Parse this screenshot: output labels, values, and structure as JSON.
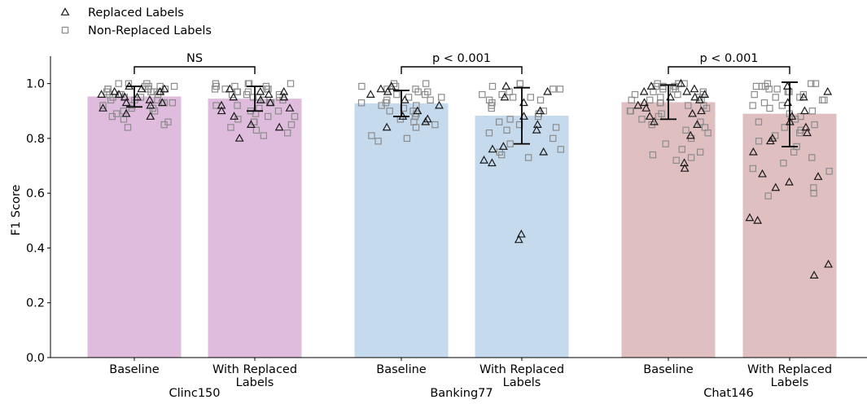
{
  "chart_data": {
    "type": "bar",
    "ylabel": "F1 Score",
    "xlabel": "",
    "title": "",
    "ylim": [
      0,
      1.1
    ],
    "yticks": [
      0.0,
      0.2,
      0.4,
      0.6,
      0.8,
      1.0
    ],
    "ytick_labels": [
      "0.0",
      "0.2",
      "0.4",
      "0.6",
      "0.8",
      "1.0"
    ],
    "legend": {
      "placement": "top-left",
      "entries": [
        {
          "label": "Replaced Labels",
          "marker": "triangle-icon"
        },
        {
          "label": "Non-Replaced Labels",
          "marker": "square-icon"
        }
      ]
    },
    "marker_colors": {
      "replaced": "#1a1a1a",
      "non_replaced": "#8c8c8c"
    },
    "groups": [
      {
        "name": "Clinc150",
        "color": "#dfbcdd",
        "significance": "NS",
        "bars": [
          {
            "label": "Baseline",
            "label_lines": [
              "Baseline"
            ],
            "value": 0.953,
            "error": [
              0.915,
              0.99
            ],
            "replaced": [
              0.99,
              0.98,
              0.97,
              0.96,
              0.95,
              0.93,
              0.92,
              0.91,
              0.98,
              0.96,
              0.94,
              0.89,
              0.88,
              0.97,
              0.95,
              0.93
            ],
            "non_replaced": [
              1.0,
              1.0,
              0.99,
              0.99,
              0.99,
              0.98,
              0.98,
              0.98,
              0.97,
              0.97,
              0.97,
              0.96,
              0.96,
              0.96,
              0.95,
              0.95,
              0.94,
              0.94,
              0.93,
              0.93,
              0.92,
              0.92,
              0.91,
              0.9,
              0.89,
              0.87,
              0.86,
              0.85,
              0.84,
              1.0,
              0.99,
              0.98,
              0.97,
              0.96,
              0.95,
              0.94,
              0.93,
              0.91,
              0.9,
              0.88
            ]
          },
          {
            "label": "With Replaced Labels",
            "label_lines": [
              "With Replaced",
              "Labels"
            ],
            "value": 0.945,
            "error": [
              0.9,
              0.99
            ],
            "replaced": [
              0.98,
              0.97,
              0.96,
              0.95,
              0.94,
              0.93,
              0.92,
              0.91,
              0.9,
              0.88,
              0.85,
              0.84,
              0.8,
              0.97,
              0.95
            ],
            "non_replaced": [
              1.0,
              1.0,
              1.0,
              0.99,
              0.99,
              0.98,
              0.98,
              0.98,
              0.97,
              0.97,
              0.97,
              0.96,
              0.96,
              0.95,
              0.95,
              0.94,
              0.94,
              0.93,
              0.92,
              0.91,
              0.9,
              0.89,
              0.88,
              0.87,
              0.86,
              0.85,
              0.84,
              0.83,
              0.82,
              0.81,
              1.0,
              0.99,
              0.98,
              0.96,
              0.95,
              0.93,
              0.92,
              0.9,
              0.88,
              0.86
            ]
          }
        ]
      },
      {
        "name": "Banking77",
        "color": "#c5daec",
        "significance": "p < 0.001",
        "bars": [
          {
            "label": "Baseline",
            "label_lines": [
              "Baseline"
            ],
            "value": 0.928,
            "error": [
              0.88,
              0.975
            ],
            "replaced": [
              0.99,
              0.98,
              0.97,
              0.96,
              0.94,
              0.92,
              0.9,
              0.88,
              0.87,
              0.86,
              0.84
            ],
            "non_replaced": [
              1.0,
              1.0,
              0.99,
              0.99,
              0.98,
              0.97,
              0.97,
              0.96,
              0.95,
              0.95,
              0.94,
              0.93,
              0.93,
              0.92,
              0.91,
              0.9,
              0.89,
              0.88,
              0.87,
              0.86,
              0.85,
              0.84,
              0.81,
              0.8,
              0.79,
              0.98,
              0.96,
              0.94,
              0.92,
              0.9
            ]
          },
          {
            "label": "With Replaced Labels",
            "label_lines": [
              "With Replaced",
              "Labels"
            ],
            "value": 0.883,
            "error": [
              0.78,
              0.985
            ],
            "replaced": [
              0.99,
              0.97,
              0.95,
              0.93,
              0.9,
              0.88,
              0.85,
              0.83,
              0.77,
              0.76,
              0.75,
              0.72,
              0.71,
              0.45,
              0.43
            ],
            "non_replaced": [
              1.0,
              1.0,
              0.99,
              0.98,
              0.97,
              0.96,
              0.95,
              0.95,
              0.94,
              0.93,
              0.92,
              0.91,
              0.9,
              0.89,
              0.88,
              0.87,
              0.86,
              0.85,
              0.84,
              0.83,
              0.82,
              0.8,
              0.78,
              0.76,
              0.75,
              0.74,
              0.73,
              0.98,
              0.96,
              0.94
            ]
          }
        ]
      },
      {
        "name": "Chat146",
        "color": "#dfbfc0",
        "significance": "p < 0.001",
        "bars": [
          {
            "label": "Baseline",
            "label_lines": [
              "Baseline"
            ],
            "value": 0.932,
            "error": [
              0.87,
              0.995
            ],
            "replaced": [
              1.0,
              0.99,
              0.98,
              0.97,
              0.96,
              0.95,
              0.94,
              0.93,
              0.92,
              0.91,
              0.9,
              0.89,
              0.88,
              0.86,
              0.85,
              0.81,
              0.71,
              0.69,
              0.97,
              0.95
            ],
            "non_replaced": [
              1.0,
              1.0,
              1.0,
              0.99,
              0.99,
              0.99,
              0.98,
              0.98,
              0.97,
              0.97,
              0.96,
              0.96,
              0.95,
              0.95,
              0.94,
              0.94,
              0.93,
              0.93,
              0.92,
              0.91,
              0.9,
              0.89,
              0.88,
              0.87,
              0.86,
              0.85,
              0.84,
              0.83,
              0.82,
              0.8,
              0.78,
              0.76,
              0.75,
              0.74,
              0.73,
              0.72,
              1.0,
              0.98,
              0.96,
              0.94,
              0.92,
              0.9
            ]
          },
          {
            "label": "With Replaced Labels",
            "label_lines": [
              "With Replaced",
              "Labels"
            ],
            "value": 0.89,
            "error": [
              0.77,
              1.005
            ],
            "replaced": [
              0.99,
              0.97,
              0.95,
              0.93,
              0.9,
              0.88,
              0.86,
              0.84,
              0.82,
              0.8,
              0.79,
              0.75,
              0.67,
              0.66,
              0.64,
              0.62,
              0.51,
              0.5,
              0.34,
              0.3
            ],
            "non_replaced": [
              1.0,
              1.0,
              1.0,
              0.99,
              0.99,
              0.98,
              0.98,
              0.97,
              0.97,
              0.96,
              0.95,
              0.95,
              0.94,
              0.93,
              0.92,
              0.91,
              0.9,
              0.89,
              0.88,
              0.87,
              0.86,
              0.85,
              0.84,
              0.83,
              0.82,
              0.81,
              0.79,
              0.77,
              0.75,
              0.73,
              0.71,
              0.69,
              0.68,
              0.62,
              0.6,
              0.59,
              0.99,
              0.96,
              0.94,
              0.92
            ]
          }
        ]
      }
    ]
  }
}
